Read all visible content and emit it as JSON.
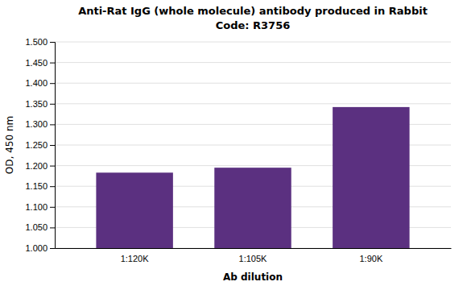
{
  "chart_data": {
    "type": "bar",
    "title": "Anti-Rat IgG (whole molecule) antibody produced in Rabbit",
    "subtitle": "Code: R3756",
    "categories": [
      "1:120K",
      "1:105K",
      "1:90K"
    ],
    "values": [
      1.183,
      1.195,
      1.342
    ],
    "color": "#5B3080",
    "xlabel": "Ab dilution",
    "ylabel": "OD, 450 nm",
    "ylim": [
      1.0,
      1.5
    ],
    "yticks": [
      {
        "value": 1.0,
        "label": "1.000"
      },
      {
        "value": 1.05,
        "label": "1.050"
      },
      {
        "value": 1.1,
        "label": "1.100"
      },
      {
        "value": 1.15,
        "label": "1.150"
      },
      {
        "value": 1.2,
        "label": "1.200"
      },
      {
        "value": 1.25,
        "label": "1.250"
      },
      {
        "value": 1.3,
        "label": "1.300"
      },
      {
        "value": 1.35,
        "label": "1.350"
      },
      {
        "value": 1.4,
        "label": "1.400"
      },
      {
        "value": 1.45,
        "label": "1.450"
      },
      {
        "value": 1.5,
        "label": "1.500"
      }
    ],
    "grid": true
  }
}
